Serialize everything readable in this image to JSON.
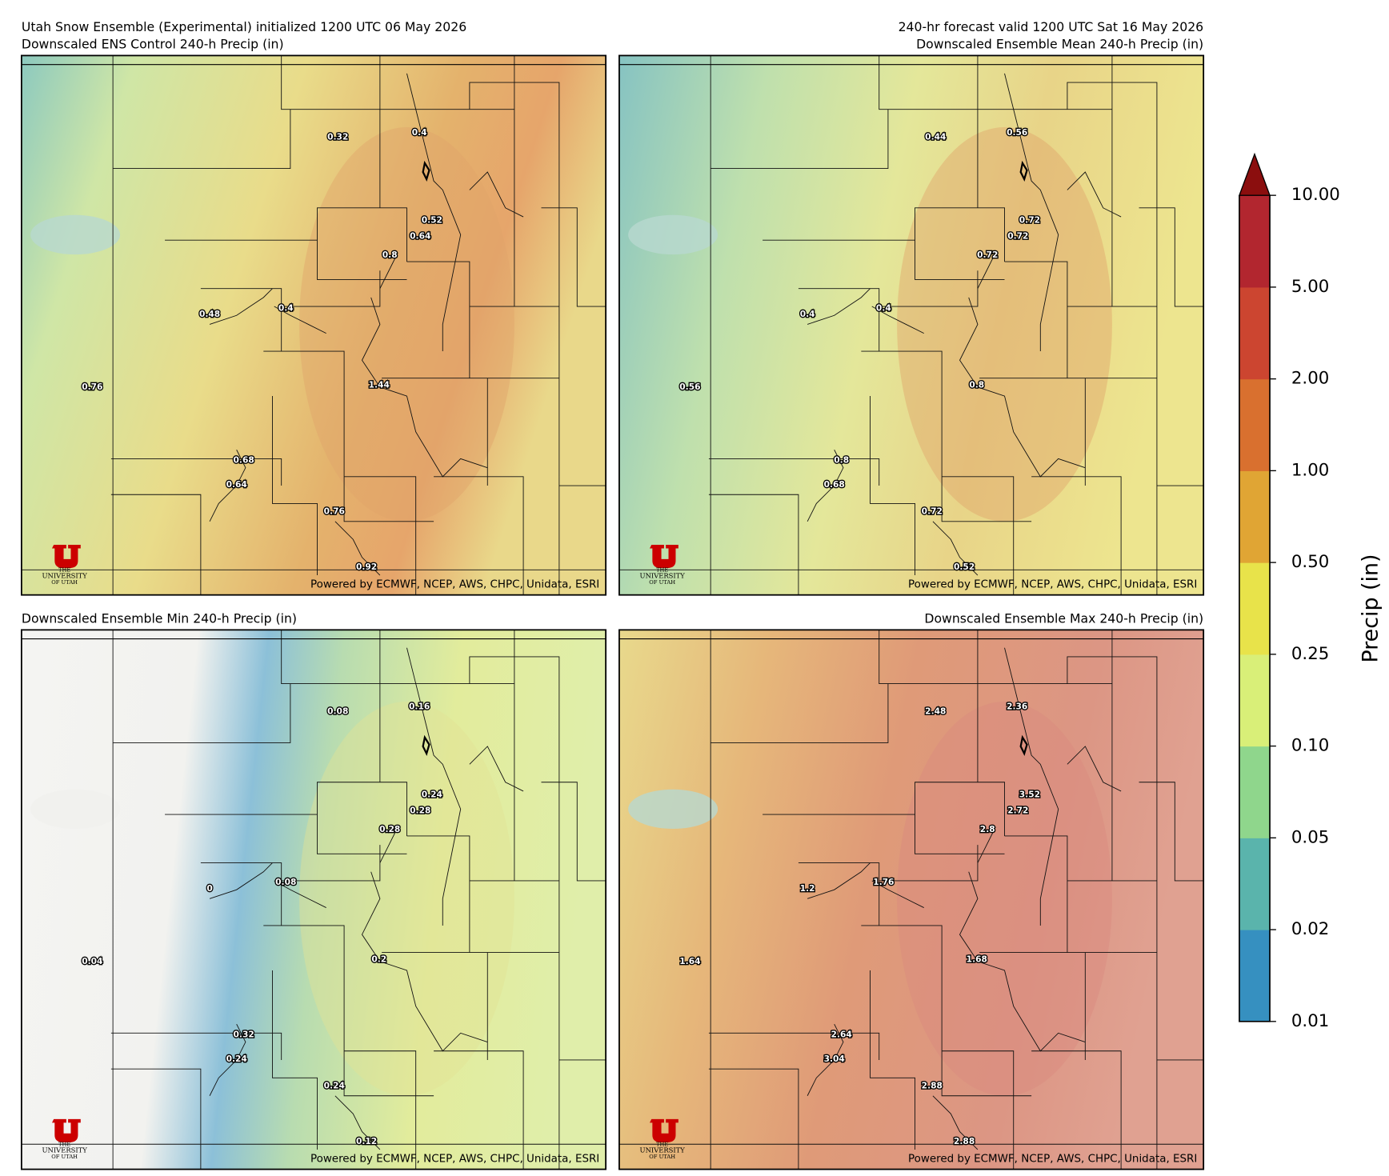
{
  "header": {
    "init": "Utah Snow Ensemble (Experimental) initialized 1200 UTC 06 May 2026",
    "valid": "240-hr forecast valid 1200 UTC Sat 16 May 2026"
  },
  "panels": [
    {
      "title": "Downscaled ENS Control 240-h Precip (in)",
      "labels": [
        0.32,
        0.4,
        0.52,
        0.64,
        0.8,
        0.48,
        0.4,
        0.76,
        1.44,
        0.68,
        0.64,
        0.76,
        0.92
      ]
    },
    {
      "title": "Downscaled Ensemble Mean 240-h Precip (in)",
      "labels": [
        0.44,
        0.56,
        0.72,
        0.72,
        0.72,
        0.4,
        0.4,
        0.56,
        0.8,
        0.8,
        0.68,
        0.72,
        0.52
      ]
    },
    {
      "title": "Downscaled Ensemble Min 240-h Precip (in)",
      "labels": [
        0.08,
        0.16,
        0.24,
        0.28,
        0.28,
        0,
        0.08,
        0.04,
        0.2,
        0.32,
        0.24,
        0.24,
        0.12
      ]
    },
    {
      "title": "Downscaled Ensemble Max 240-h Precip (in)",
      "labels": [
        2.48,
        2.36,
        3.52,
        2.72,
        2.8,
        1.2,
        1.76,
        1.64,
        1.68,
        2.64,
        3.04,
        2.88,
        2.88
      ]
    }
  ],
  "attribution": "Powered by ECMWF, NCEP, AWS, CHPC, Unidata, ESRI",
  "logo": {
    "line1": "THE",
    "line2": "UNIVERSITY",
    "line3": "OF UTAH"
  },
  "colorbar": {
    "label": "Precip (in)",
    "ticks": [
      {
        "value": 0.01,
        "label": "0.01"
      },
      {
        "value": 0.02,
        "label": "0.02"
      },
      {
        "value": 0.05,
        "label": "0.05"
      },
      {
        "value": 0.1,
        "label": "0.10"
      },
      {
        "value": 0.25,
        "label": "0.25"
      },
      {
        "value": 0.5,
        "label": "0.50"
      },
      {
        "value": 1,
        "label": "1.00"
      },
      {
        "value": 2,
        "label": "2.00"
      },
      {
        "value": 5,
        "label": "5.00"
      },
      {
        "value": 10,
        "label": "10.00"
      }
    ],
    "colors": [
      "#3690c0",
      "#5ab4ac",
      "#8fd68c",
      "#d9ef78",
      "#e8e34a",
      "#e0a534",
      "#d9702f",
      "#cc4530",
      "#b2262f"
    ],
    "extend_color": "#8b0e0e"
  }
}
